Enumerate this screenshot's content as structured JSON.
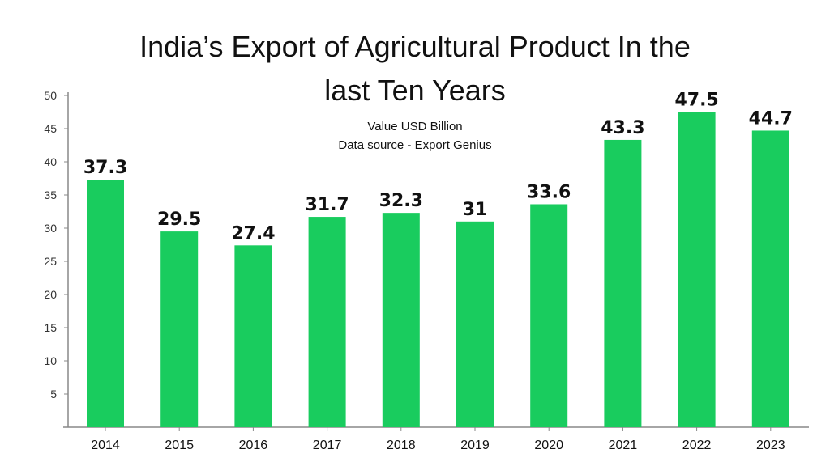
{
  "chart_data": {
    "type": "bar",
    "title_lines": [
      "India’s Export of Agricultural Product In the",
      "last Ten Years"
    ],
    "subtitle_lines": [
      "Value USD Billion",
      "Data source - Export Genius"
    ],
    "categories": [
      "2014",
      "2015",
      "2016",
      "2017",
      "2018",
      "2019",
      "2020",
      "2021",
      "2022",
      "2023"
    ],
    "values": [
      37.3,
      29.5,
      27.4,
      31.7,
      32.3,
      31,
      33.6,
      43.3,
      47.5,
      44.7
    ],
    "data_labels": [
      "37.3",
      "29.5",
      "27.4",
      "31.7",
      "32.3",
      "31",
      "33.6",
      "43.3",
      "47.5",
      "44.7"
    ],
    "yticks": [
      5,
      10,
      15,
      20,
      25,
      30,
      35,
      40,
      45,
      50
    ],
    "ylim": [
      0,
      50
    ],
    "xlabel": "",
    "ylabel": "",
    "grid": false,
    "bar_color": "#19cc5e",
    "axis_color": "#888888"
  }
}
